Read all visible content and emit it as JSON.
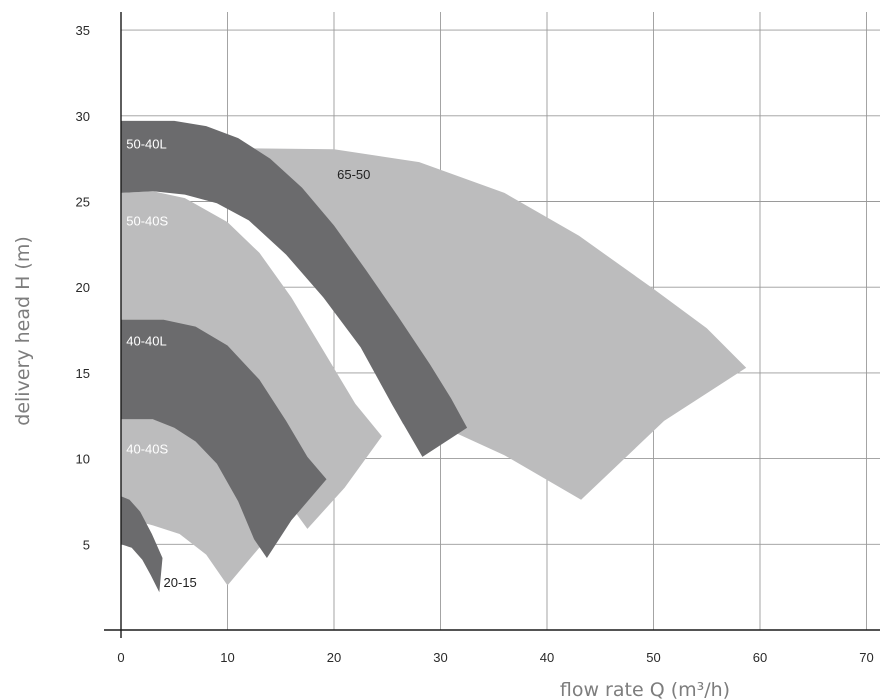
{
  "chart_data": {
    "type": "area",
    "title": "",
    "xlabel": "flow rate Q (m³/h)",
    "ylabel": "delivery head H (m)",
    "xlim": [
      0,
      72
    ],
    "ylim": [
      0,
      36
    ],
    "x_ticks": [
      0,
      10,
      20,
      30,
      40,
      50,
      60,
      70
    ],
    "y_ticks": [
      5,
      10,
      15,
      20,
      25,
      30,
      35
    ],
    "grid": true,
    "colors": {
      "light": "#bcbcbd",
      "dark": "#6b6b6d",
      "label_on_dark": "#ffffff",
      "label_on_light": "#222222"
    },
    "series": [
      {
        "name": "65-50",
        "shade": "light",
        "label_pos": [
          20.2,
          26.3
        ],
        "label_color": "label_on_light",
        "points": [
          [
            12.5,
            28.1
          ],
          [
            20,
            28.05
          ],
          [
            28,
            27.3
          ],
          [
            36,
            25.5
          ],
          [
            43,
            23
          ],
          [
            50,
            19.9
          ],
          [
            55,
            17.6
          ],
          [
            58.7,
            15.3
          ],
          [
            51,
            12.2
          ],
          [
            43.2,
            7.6
          ],
          [
            36,
            10.2
          ],
          [
            30,
            11.9
          ],
          [
            26.5,
            12
          ]
        ]
      },
      {
        "name": "50-40S",
        "shade": "light",
        "label_pos": [
          0.4,
          23.6
        ],
        "label_color": "label_on_dark",
        "points": [
          [
            0,
            25.5
          ],
          [
            3,
            25.6
          ],
          [
            6,
            25.2
          ],
          [
            10,
            23.8
          ],
          [
            13,
            22
          ],
          [
            16,
            19.4
          ],
          [
            19,
            16.3
          ],
          [
            22,
            13.2
          ],
          [
            24.5,
            11.3
          ],
          [
            21,
            8.3
          ],
          [
            17.5,
            5.9
          ],
          [
            12,
            10.6
          ],
          [
            8,
            12.1
          ],
          [
            6,
            12.3
          ],
          [
            5,
            12.9
          ],
          [
            0,
            12.9
          ]
        ]
      },
      {
        "name": "50-40L",
        "shade": "dark",
        "label_pos": [
          0.4,
          28.1
        ],
        "label_color": "label_on_dark",
        "points": [
          [
            0,
            29.7
          ],
          [
            5,
            29.7
          ],
          [
            8,
            29.4
          ],
          [
            11,
            28.7
          ],
          [
            14,
            27.5
          ],
          [
            17,
            25.8
          ],
          [
            20,
            23.6
          ],
          [
            23,
            21
          ],
          [
            26,
            18.3
          ],
          [
            29,
            15.5
          ],
          [
            31,
            13.5
          ],
          [
            32.5,
            11.8
          ],
          [
            28.3,
            10.1
          ],
          [
            25.5,
            13.1
          ],
          [
            22.5,
            16.5
          ],
          [
            19,
            19.4
          ],
          [
            15.5,
            21.9
          ],
          [
            12,
            23.9
          ],
          [
            9,
            24.9
          ],
          [
            6,
            25.4
          ],
          [
            3,
            25.6
          ],
          [
            0,
            25.5
          ]
        ]
      },
      {
        "name": "40-40S",
        "shade": "light",
        "label_pos": [
          0.4,
          10.3
        ],
        "label_color": "label_on_dark",
        "points": [
          [
            0,
            12.3
          ],
          [
            3,
            12.3
          ],
          [
            6,
            11.9
          ],
          [
            9,
            11
          ],
          [
            11.5,
            9.4
          ],
          [
            13.5,
            7.6
          ],
          [
            14.8,
            5.8
          ],
          [
            13.8,
            5.4
          ],
          [
            10,
            2.6
          ],
          [
            8,
            4.4
          ],
          [
            5.5,
            5.6
          ],
          [
            3,
            6.1
          ],
          [
            0,
            6.6
          ]
        ]
      },
      {
        "name": "40-40L",
        "shade": "dark",
        "label_pos": [
          0.4,
          16.6
        ],
        "label_color": "label_on_dark",
        "points": [
          [
            0,
            18.1
          ],
          [
            4,
            18.1
          ],
          [
            7,
            17.7
          ],
          [
            10,
            16.6
          ],
          [
            13,
            14.6
          ],
          [
            15.5,
            12.2
          ],
          [
            17.5,
            10.1
          ],
          [
            19.3,
            8.8
          ],
          [
            16,
            6.4
          ],
          [
            13.7,
            4.2
          ],
          [
            12.5,
            5.3
          ],
          [
            11,
            7.5
          ],
          [
            9,
            9.7
          ],
          [
            7,
            11
          ],
          [
            5,
            11.8
          ],
          [
            3,
            12.3
          ],
          [
            0,
            12.3
          ]
        ]
      },
      {
        "name": "20-15",
        "shade": "dark",
        "label_pos": [
          3.9,
          2.5
        ],
        "label_color": "label_on_light",
        "points": [
          [
            0,
            7.8
          ],
          [
            0.8,
            7.6
          ],
          [
            1.8,
            6.9
          ],
          [
            2.9,
            5.6
          ],
          [
            3.9,
            4.2
          ],
          [
            3.6,
            2.2
          ],
          [
            2.8,
            3.2
          ],
          [
            2,
            4.1
          ],
          [
            1,
            4.8
          ],
          [
            0,
            5
          ]
        ]
      }
    ]
  }
}
